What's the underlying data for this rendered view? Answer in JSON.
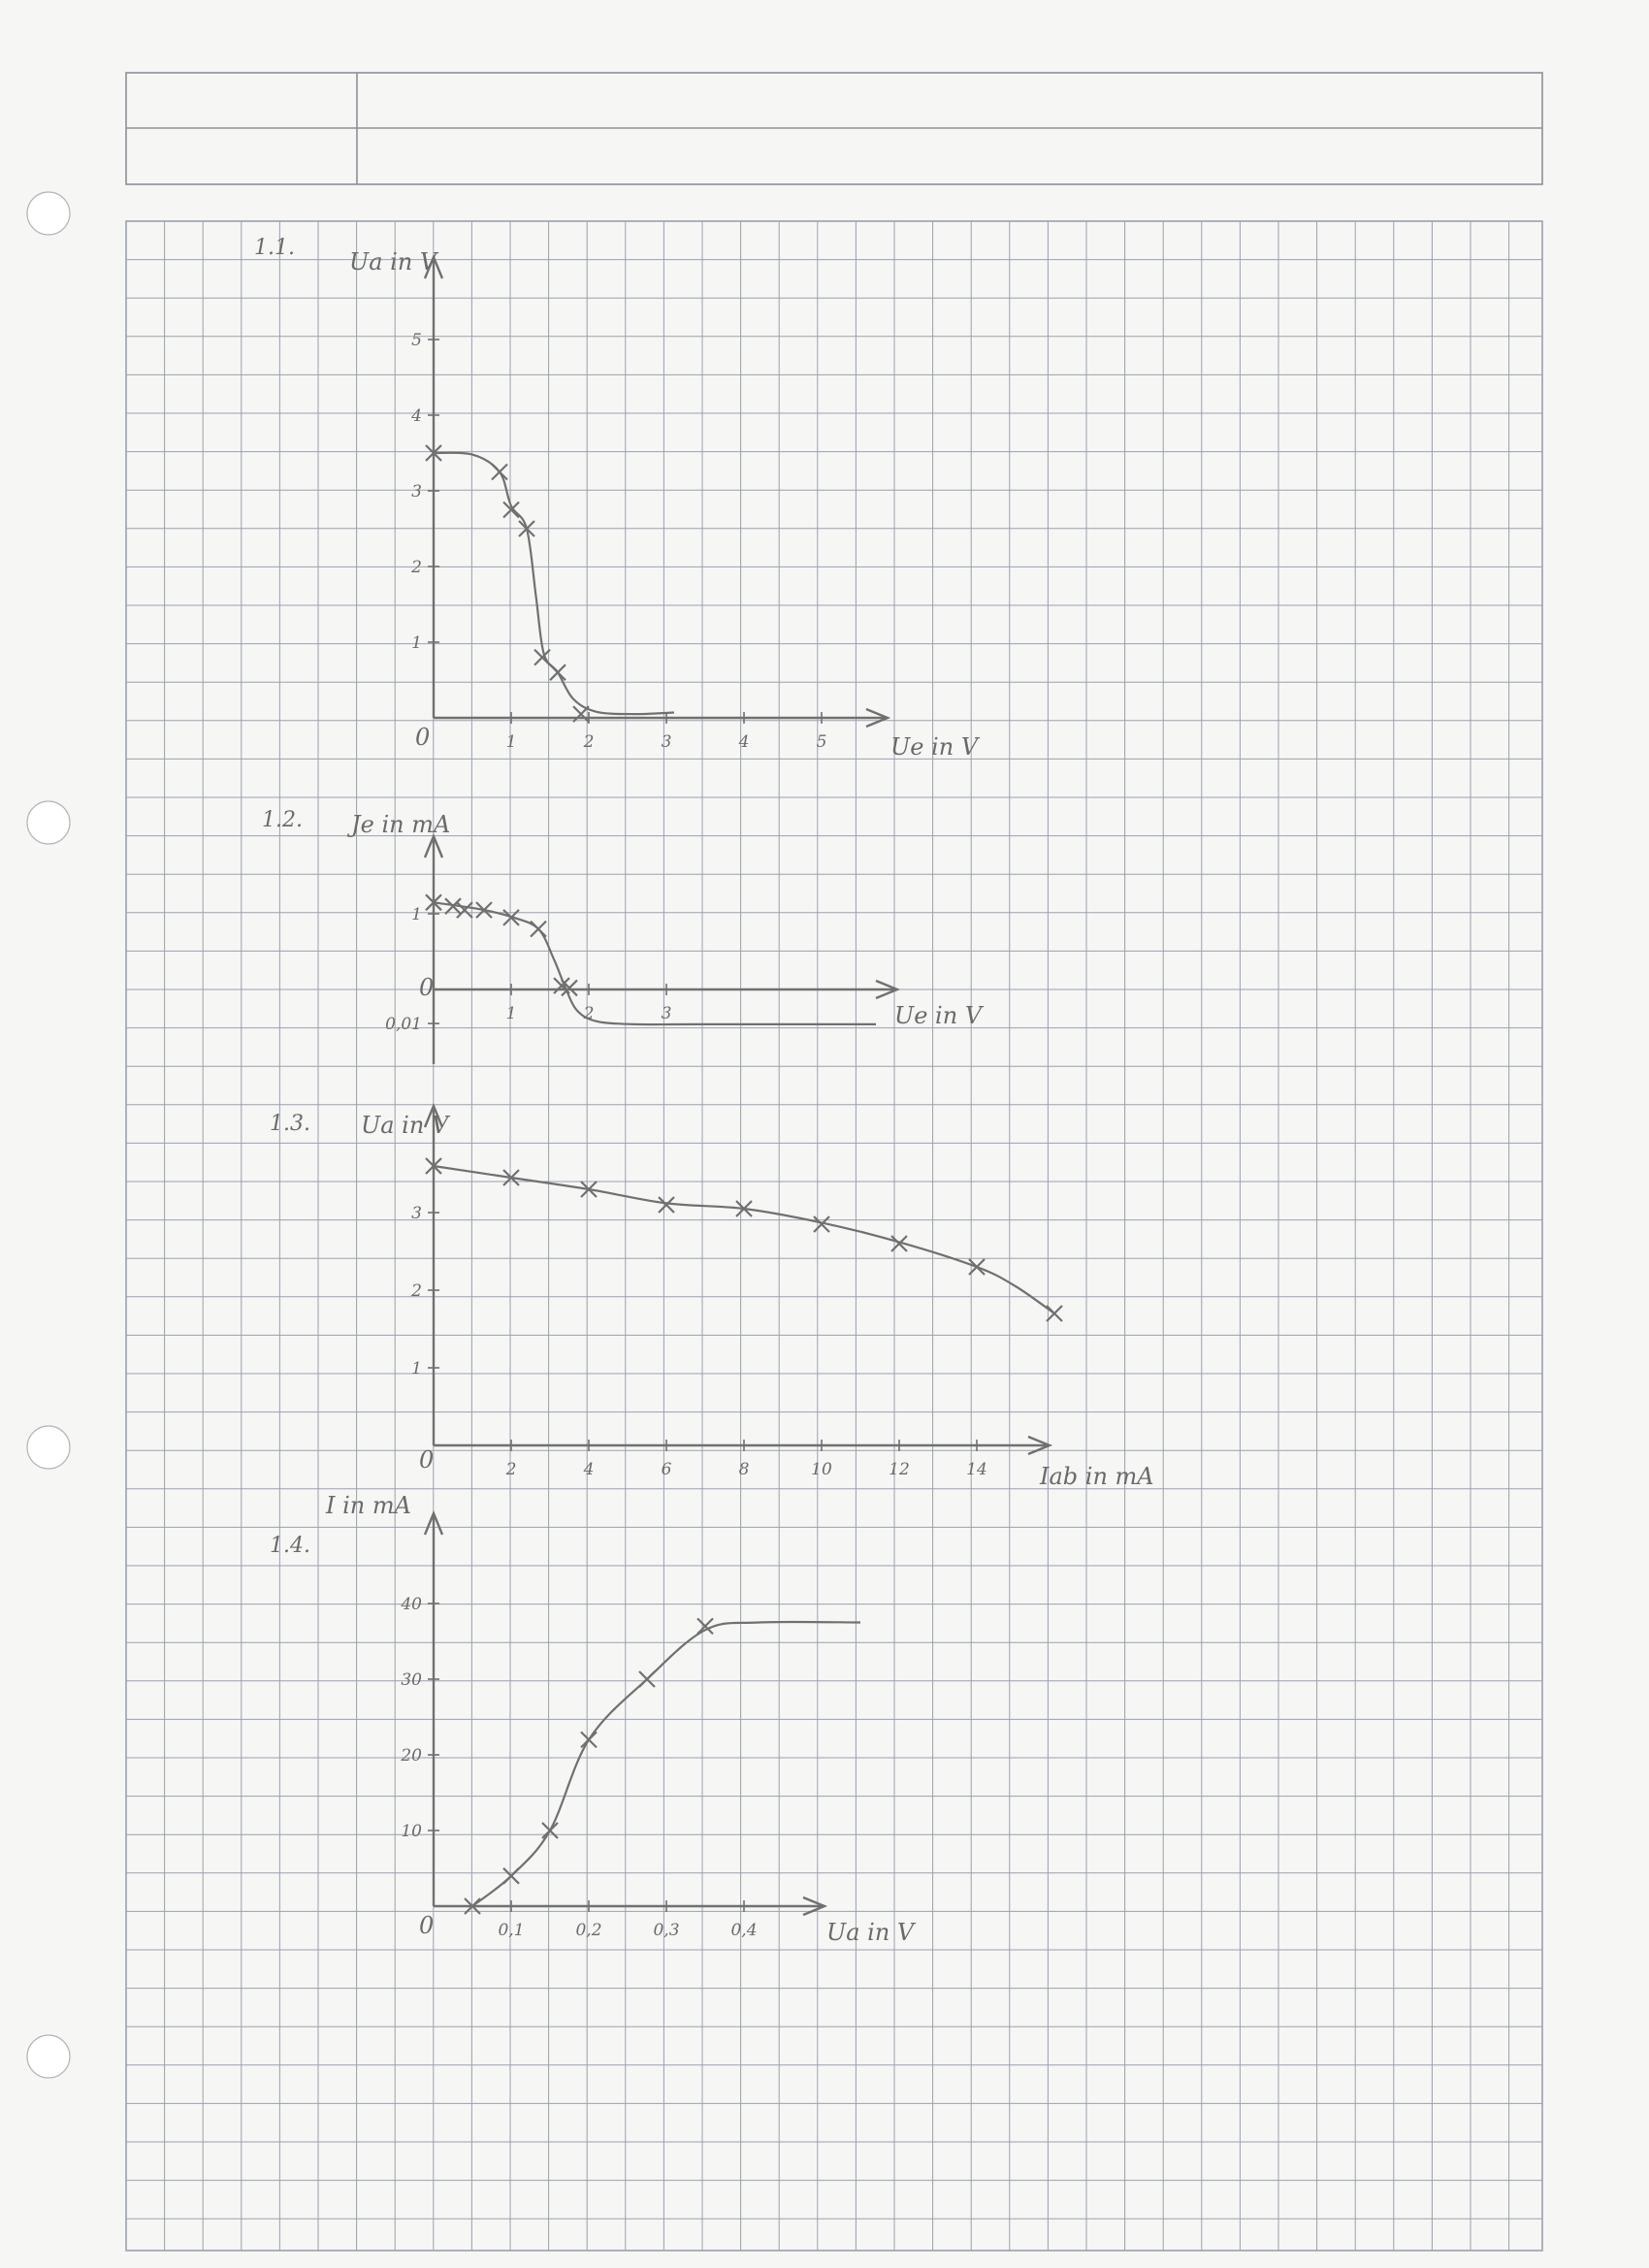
{
  "colors": {
    "paper": "#f6f6f4",
    "grid": "#9aa0b0",
    "pencil": "#707070"
  },
  "header_table": {
    "cells": [
      "",
      "",
      "",
      ""
    ]
  },
  "chart_data": [
    {
      "id": "c1",
      "type": "line",
      "section_label": "1.1.",
      "xlabel": "Ue in V",
      "ylabel": "Ua in V",
      "origin_label": "0",
      "x_ticks": [
        {
          "v": 1,
          "t": "1"
        },
        {
          "v": 2,
          "t": "2"
        },
        {
          "v": 3,
          "t": "3"
        },
        {
          "v": 4,
          "t": "4"
        },
        {
          "v": 5,
          "t": "5"
        }
      ],
      "y_ticks": [
        {
          "v": 1,
          "t": "1"
        },
        {
          "v": 2,
          "t": "2"
        },
        {
          "v": 3,
          "t": "3"
        },
        {
          "v": 4,
          "t": "4"
        },
        {
          "v": 5,
          "t": "5"
        }
      ],
      "xlim": [
        0,
        5.9
      ],
      "ylim": [
        0,
        6
      ],
      "points": [
        [
          0,
          3.5
        ],
        [
          0.85,
          3.25
        ],
        [
          1.0,
          2.75
        ],
        [
          1.2,
          2.5
        ],
        [
          1.4,
          0.8
        ],
        [
          1.6,
          0.6
        ],
        [
          1.9,
          0.05
        ]
      ],
      "curve": [
        [
          0,
          3.5
        ],
        [
          0.5,
          3.48
        ],
        [
          0.85,
          3.25
        ],
        [
          1.0,
          2.8
        ],
        [
          1.2,
          2.5
        ],
        [
          1.32,
          1.6
        ],
        [
          1.42,
          0.85
        ],
        [
          1.6,
          0.6
        ],
        [
          1.8,
          0.25
        ],
        [
          2.1,
          0.08
        ],
        [
          2.6,
          0.05
        ],
        [
          3.1,
          0.07
        ]
      ]
    },
    {
      "id": "c2",
      "type": "line",
      "section_label": "1.2.",
      "xlabel": "Ue in V",
      "ylabel": "Je in mA",
      "origin_label": "0",
      "x_ticks": [
        {
          "v": 1,
          "t": "1"
        },
        {
          "v": 2,
          "t": "2"
        },
        {
          "v": 3,
          "t": "3"
        }
      ],
      "y_ticks": [
        {
          "v": 1,
          "t": "1"
        },
        {
          "v": -0.45,
          "t": "0,01"
        }
      ],
      "xlim": [
        0,
        6
      ],
      "ylim": [
        -1,
        1.4
      ],
      "points": [
        [
          0,
          1.15
        ],
        [
          0.25,
          1.1
        ],
        [
          0.4,
          1.05
        ],
        [
          0.65,
          1.05
        ],
        [
          1.0,
          0.95
        ],
        [
          1.35,
          0.8
        ],
        [
          1.65,
          0.05
        ],
        [
          1.75,
          0.02
        ]
      ],
      "curve": [
        [
          0,
          1.15
        ],
        [
          0.6,
          1.06
        ],
        [
          1.0,
          0.96
        ],
        [
          1.35,
          0.8
        ],
        [
          1.55,
          0.4
        ],
        [
          1.7,
          0.02
        ],
        [
          1.85,
          -0.28
        ],
        [
          2.1,
          -0.42
        ],
        [
          2.6,
          -0.46
        ],
        [
          3.4,
          -0.46
        ],
        [
          5.7,
          -0.46
        ]
      ]
    },
    {
      "id": "c3",
      "type": "line",
      "section_label": "1.3.",
      "xlabel": "Iab in mA",
      "ylabel": "Ua in V",
      "origin_label": "0",
      "x_ticks": [
        {
          "v": 2,
          "t": "2"
        },
        {
          "v": 4,
          "t": "4"
        },
        {
          "v": 6,
          "t": "6"
        },
        {
          "v": 8,
          "t": "8"
        },
        {
          "v": 10,
          "t": "10"
        },
        {
          "v": 12,
          "t": "12"
        },
        {
          "v": 14,
          "t": "14"
        }
      ],
      "y_ticks": [
        {
          "v": 1,
          "t": "1"
        },
        {
          "v": 2,
          "t": "2"
        },
        {
          "v": 3,
          "t": "3"
        }
      ],
      "xlim": [
        0,
        16.2
      ],
      "ylim": [
        0,
        4
      ],
      "points": [
        [
          0,
          3.6
        ],
        [
          2,
          3.45
        ],
        [
          4,
          3.3
        ],
        [
          6,
          3.1
        ],
        [
          8,
          3.05
        ],
        [
          10,
          2.85
        ],
        [
          12,
          2.6
        ],
        [
          14,
          2.3
        ],
        [
          16,
          1.7
        ]
      ],
      "curve": [
        [
          0,
          3.6
        ],
        [
          2,
          3.45
        ],
        [
          4,
          3.3
        ],
        [
          6,
          3.12
        ],
        [
          8,
          3.05
        ],
        [
          10,
          2.87
        ],
        [
          12,
          2.62
        ],
        [
          14,
          2.3
        ],
        [
          15,
          2.05
        ],
        [
          16,
          1.7
        ]
      ]
    },
    {
      "id": "c4",
      "type": "line",
      "section_label": "1.4.",
      "xlabel": "Ua in V",
      "ylabel": "I in mA",
      "origin_label": "0",
      "x_ticks": [
        {
          "v": 0.1,
          "t": "0,1"
        },
        {
          "v": 0.2,
          "t": "0,2"
        },
        {
          "v": 0.3,
          "t": "0,3"
        },
        {
          "v": 0.4,
          "t": "0,4"
        }
      ],
      "y_ticks": [
        {
          "v": 10,
          "t": "10"
        },
        {
          "v": 20,
          "t": "20"
        },
        {
          "v": 30,
          "t": "30"
        },
        {
          "v": 40,
          "t": "40"
        }
      ],
      "xlim": [
        0,
        0.5
      ],
      "ylim": [
        0,
        50
      ],
      "points": [
        [
          0.05,
          0
        ],
        [
          0.1,
          4
        ],
        [
          0.15,
          10
        ],
        [
          0.2,
          22
        ],
        [
          0.275,
          30
        ],
        [
          0.35,
          37
        ]
      ],
      "curve": [
        [
          0.05,
          0
        ],
        [
          0.1,
          4
        ],
        [
          0.15,
          10
        ],
        [
          0.2,
          22
        ],
        [
          0.275,
          30
        ],
        [
          0.35,
          36.5
        ],
        [
          0.42,
          37.5
        ],
        [
          0.55,
          37.5
        ]
      ]
    }
  ]
}
